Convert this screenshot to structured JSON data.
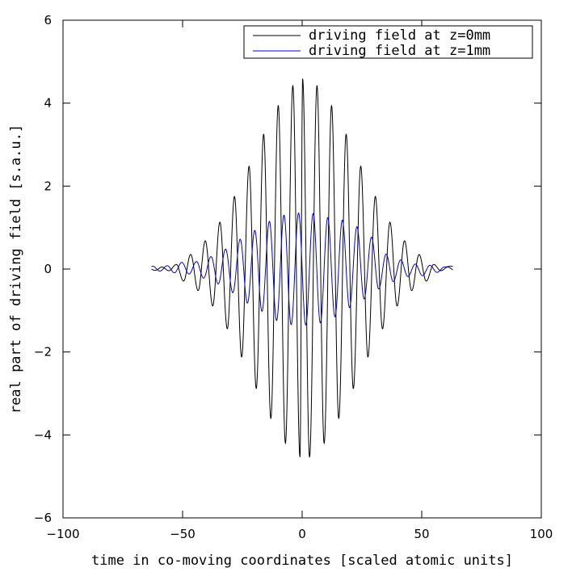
{
  "chart_data": {
    "type": "line",
    "title": "",
    "xlabel": "time in co-moving coordinates [scaled atomic units]",
    "ylabel": "real part of driving field [s.a.u.]",
    "xlim": [
      -100,
      100
    ],
    "ylim": [
      -6,
      6
    ],
    "xticks": [
      -100,
      -50,
      0,
      50,
      100
    ],
    "yticks": [
      -6,
      -4,
      -2,
      0,
      2,
      4,
      6
    ],
    "xtick_labels": [
      "−100",
      "−50",
      "0",
      "50",
      "100"
    ],
    "ytick_labels": [
      "−6",
      "−4",
      "−2",
      "0",
      "2",
      "4",
      "6"
    ],
    "grid": false,
    "legend_position": "top-right",
    "series": [
      {
        "name": "driving field at z=0mm",
        "color": "#000000",
        "x_range": [
          -63,
          63
        ],
        "peaks": [
          {
            "x": -58.7,
            "y": 0.05
          },
          {
            "x": -55.7,
            "y": -0.04
          },
          {
            "x": -52.6,
            "y": 0.11
          },
          {
            "x": -49.6,
            "y": -0.29
          },
          {
            "x": -46.6,
            "y": 0.35
          },
          {
            "x": -43.5,
            "y": -0.52
          },
          {
            "x": -40.5,
            "y": 0.68
          },
          {
            "x": -37.4,
            "y": -0.89
          },
          {
            "x": -34.4,
            "y": 1.13
          },
          {
            "x": -31.3,
            "y": -1.44
          },
          {
            "x": -28.3,
            "y": 1.75
          },
          {
            "x": -25.3,
            "y": -2.12
          },
          {
            "x": -22.2,
            "y": 2.48
          },
          {
            "x": -19.2,
            "y": -2.88
          },
          {
            "x": -16.1,
            "y": 3.25
          },
          {
            "x": -13.1,
            "y": -3.6
          },
          {
            "x": -10.0,
            "y": 3.94
          },
          {
            "x": -7.0,
            "y": -4.2
          },
          {
            "x": -3.9,
            "y": 4.42
          },
          {
            "x": -0.9,
            "y": -4.53
          },
          {
            "x": 0.2,
            "y": 4.58
          },
          {
            "x": 3.1,
            "y": -4.53
          },
          {
            "x": 6.2,
            "y": 4.42
          },
          {
            "x": 9.2,
            "y": -4.2
          },
          {
            "x": 12.3,
            "y": 3.94
          },
          {
            "x": 15.3,
            "y": -3.6
          },
          {
            "x": 18.4,
            "y": 3.25
          },
          {
            "x": 21.4,
            "y": -2.88
          },
          {
            "x": 24.5,
            "y": 2.48
          },
          {
            "x": 27.5,
            "y": -2.12
          },
          {
            "x": 30.6,
            "y": 1.75
          },
          {
            "x": 33.6,
            "y": -1.44
          },
          {
            "x": 36.7,
            "y": 1.13
          },
          {
            "x": 39.7,
            "y": -0.89
          },
          {
            "x": 42.8,
            "y": 0.68
          },
          {
            "x": 45.8,
            "y": -0.52
          },
          {
            "x": 48.9,
            "y": 0.35
          },
          {
            "x": 51.9,
            "y": -0.29
          },
          {
            "x": 55.0,
            "y": 0.11
          },
          {
            "x": 58.0,
            "y": -0.04
          },
          {
            "x": 61.0,
            "y": 0.05
          }
        ]
      },
      {
        "name": "driving field at z=1mm",
        "color": "#0000cc",
        "x_range": [
          -63,
          63
        ],
        "peaks": [
          {
            "x": -62.5,
            "y": 0.07
          },
          {
            "x": -59.5,
            "y": -0.05
          },
          {
            "x": -56.4,
            "y": 0.08
          },
          {
            "x": -53.4,
            "y": -0.09
          },
          {
            "x": -50.3,
            "y": 0.16
          },
          {
            "x": -47.3,
            "y": -0.12
          },
          {
            "x": -44.2,
            "y": 0.18
          },
          {
            "x": -41.2,
            "y": -0.22
          },
          {
            "x": -38.1,
            "y": 0.3
          },
          {
            "x": -35.1,
            "y": -0.36
          },
          {
            "x": -32.0,
            "y": 0.48
          },
          {
            "x": -29.0,
            "y": -0.57
          },
          {
            "x": -25.9,
            "y": 0.72
          },
          {
            "x": -22.9,
            "y": -0.82
          },
          {
            "x": -19.8,
            "y": 0.93
          },
          {
            "x": -16.8,
            "y": -1.02
          },
          {
            "x": -13.7,
            "y": 1.15
          },
          {
            "x": -10.7,
            "y": -1.24
          },
          {
            "x": -7.6,
            "y": 1.3
          },
          {
            "x": -4.6,
            "y": -1.34
          },
          {
            "x": -1.5,
            "y": 1.35
          },
          {
            "x": 1.5,
            "y": -1.35
          },
          {
            "x": 4.6,
            "y": 1.34
          },
          {
            "x": 7.6,
            "y": -1.3
          },
          {
            "x": 10.7,
            "y": 1.24
          },
          {
            "x": 13.7,
            "y": -1.15
          },
          {
            "x": 16.8,
            "y": 1.18
          },
          {
            "x": 19.8,
            "y": -0.93
          },
          {
            "x": 22.9,
            "y": 1.02
          },
          {
            "x": 25.9,
            "y": -0.72
          },
          {
            "x": 29.0,
            "y": 0.77
          },
          {
            "x": 32.0,
            "y": -0.48
          },
          {
            "x": 35.1,
            "y": 0.36
          },
          {
            "x": 38.1,
            "y": -0.3
          },
          {
            "x": 41.2,
            "y": 0.22
          },
          {
            "x": 44.2,
            "y": -0.18
          },
          {
            "x": 47.3,
            "y": 0.12
          },
          {
            "x": 50.3,
            "y": -0.16
          },
          {
            "x": 53.4,
            "y": 0.09
          },
          {
            "x": 56.4,
            "y": -0.08
          },
          {
            "x": 59.5,
            "y": 0.05
          },
          {
            "x": 62.5,
            "y": 0.07
          }
        ]
      }
    ]
  }
}
